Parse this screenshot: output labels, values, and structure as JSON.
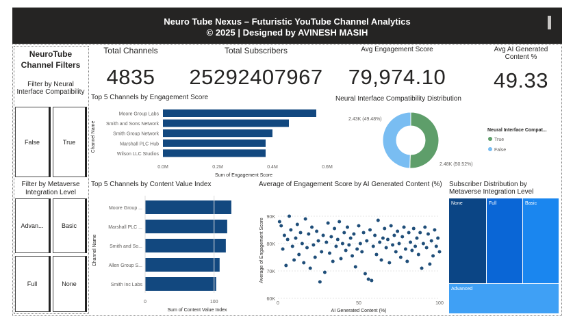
{
  "header": {
    "title": "Neuro Tube Nexus – Futuristic YouTube Channel Analytics",
    "subtitle": "© 2025 | Designed by AVINESH MASIH"
  },
  "filters": {
    "panel_title": "NeuroTube Channel Filters",
    "neural_title": "Filter by Neural Interface Compatibility",
    "neural_options": [
      "False",
      "True"
    ],
    "metaverse_title": "Filter by Metaverse Integration Level",
    "metaverse_options": [
      "Advan...",
      "Basic",
      "Full",
      "None"
    ]
  },
  "kpis": {
    "total_channels_label": "Total Channels",
    "total_channels_value": "4835",
    "total_subscribers_label": "Total Subscribers",
    "total_subscribers_value": "25292407967",
    "avg_engagement_label": "Avg Engagement Score",
    "avg_engagement_value": "79,974.10",
    "avg_ai_label": "Avg AI Generated Content %",
    "avg_ai_value": "49.33"
  },
  "colors": {
    "navy": "#12487f",
    "green": "#5e9e6a",
    "lightblue": "#79bdf2",
    "scatter": "#1f4e79",
    "treemap_none": "#0b4585",
    "treemap_full": "#0a66d6",
    "treemap_basic": "#1a86ef",
    "treemap_advanced": "#3fa0f5"
  },
  "chart_data": [
    {
      "type": "bar",
      "title": "Top 5 Channels by Engagement Score",
      "categories": [
        "Moore Group Labs",
        "Smith and Sons Network",
        "Smith Group Network",
        "Marshall PLC Hub",
        "Wilson LLC Studios"
      ],
      "values": [
        560000,
        460000,
        400000,
        375000,
        375000
      ],
      "xlabel": "Sum of Engagement Score",
      "ylabel": "Channel Name",
      "xticks": [
        "0.0M",
        "0.2M",
        "0.4M",
        "0.6M"
      ],
      "xlim": [
        0,
        600000
      ]
    },
    {
      "type": "pie",
      "title": "Neural Interface Compatibility Distribution",
      "legend_title": "Neural Interface Compat...",
      "slices": [
        {
          "label": "True",
          "value": 50.52,
          "data_label": "2.48K (50.52%)"
        },
        {
          "label": "False",
          "value": 49.48,
          "data_label": "2.43K (49.48%)"
        }
      ]
    },
    {
      "type": "bar",
      "title": "Top 5 Channels by Content Value Index",
      "categories": [
        "Moore Group ...",
        "Marshall PLC ...",
        "Smith and So...",
        "Allen Group S...",
        "Smith Inc Labs"
      ],
      "values": [
        125,
        119,
        117,
        108,
        103
      ],
      "xlabel": "Sum of Content Value Index",
      "ylabel": "Channel Name",
      "xticks": [
        "0",
        "100"
      ],
      "xlim": [
        0,
        135
      ]
    },
    {
      "type": "scatter",
      "title": "Average of Engagement Score by AI Generated Content (%)",
      "xlabel": "AI Generated Content (%)",
      "ylabel": "Average of Engagement Score",
      "xticks": [
        "0",
        "50",
        "100"
      ],
      "yticks": [
        "60K",
        "70K",
        "80K",
        "90K"
      ],
      "xlim": [
        0,
        100
      ],
      "ylim": [
        60000,
        95000
      ],
      "points": [
        [
          1,
          88000
        ],
        [
          2,
          86500
        ],
        [
          3,
          78000
        ],
        [
          4,
          83000
        ],
        [
          5,
          72000
        ],
        [
          6,
          81500
        ],
        [
          7,
          90000
        ],
        [
          8,
          85000
        ],
        [
          9,
          79000
        ],
        [
          10,
          74000
        ],
        [
          11,
          82000
        ],
        [
          12,
          87000
        ],
        [
          13,
          76000
        ],
        [
          14,
          84000
        ],
        [
          15,
          80000
        ],
        [
          16,
          73000
        ],
        [
          17,
          89000
        ],
        [
          18,
          78500
        ],
        [
          19,
          83500
        ],
        [
          20,
          71000
        ],
        [
          21,
          86000
        ],
        [
          22,
          79500
        ],
        [
          23,
          75000
        ],
        [
          24,
          84500
        ],
        [
          25,
          81000
        ],
        [
          26,
          66000
        ],
        [
          27,
          77000
        ],
        [
          28,
          83000
        ],
        [
          29,
          69500
        ],
        [
          30,
          80500
        ],
        [
          31,
          87500
        ],
        [
          32,
          76500
        ],
        [
          33,
          82500
        ],
        [
          34,
          73500
        ],
        [
          35,
          85500
        ],
        [
          36,
          79000
        ],
        [
          37,
          81500
        ],
        [
          38,
          88000
        ],
        [
          39,
          74500
        ],
        [
          40,
          80000
        ],
        [
          41,
          84000
        ],
        [
          42,
          77500
        ],
        [
          43,
          86000
        ],
        [
          44,
          79500
        ],
        [
          45,
          82000
        ],
        [
          46,
          75500
        ],
        [
          47,
          83500
        ],
        [
          48,
          71500
        ],
        [
          49,
          78000
        ],
        [
          50,
          86500
        ],
        [
          51,
          80000
        ],
        [
          52,
          77000
        ],
        [
          53,
          84000
        ],
        [
          54,
          69000
        ],
        [
          55,
          81000
        ],
        [
          56,
          67000
        ],
        [
          57,
          85000
        ],
        [
          58,
          66500
        ],
        [
          59,
          79000
        ],
        [
          60,
          83000
        ],
        [
          61,
          76000
        ],
        [
          62,
          88500
        ],
        [
          63,
          80500
        ],
        [
          64,
          74000
        ],
        [
          65,
          82000
        ],
        [
          66,
          85500
        ],
        [
          67,
          78500
        ],
        [
          68,
          81500
        ],
        [
          69,
          73000
        ],
        [
          70,
          86500
        ],
        [
          71,
          79500
        ],
        [
          72,
          83000
        ],
        [
          73,
          77000
        ],
        [
          74,
          84500
        ],
        [
          75,
          80000
        ],
        [
          76,
          75000
        ],
        [
          77,
          82500
        ],
        [
          78,
          86000
        ],
        [
          79,
          78000
        ],
        [
          80,
          73500
        ],
        [
          81,
          84000
        ],
        [
          82,
          80500
        ],
        [
          83,
          77500
        ],
        [
          84,
          85500
        ],
        [
          85,
          79000
        ],
        [
          86,
          82000
        ],
        [
          87,
          76000
        ],
        [
          88,
          84000
        ],
        [
          89,
          71000
        ],
        [
          90,
          80000
        ],
        [
          91,
          86000
        ],
        [
          92,
          78500
        ],
        [
          93,
          83500
        ],
        [
          94,
          72500
        ],
        [
          95,
          81000
        ],
        [
          96,
          75500
        ],
        [
          97,
          85000
        ],
        [
          98,
          79000
        ],
        [
          99,
          82000
        ],
        [
          100,
          77000
        ]
      ]
    },
    {
      "type": "treemap",
      "title": "Subscriber Distribution by Metaverse Integration Level",
      "labels": [
        "None",
        "Full",
        "Basic",
        "Advanced"
      ]
    }
  ]
}
